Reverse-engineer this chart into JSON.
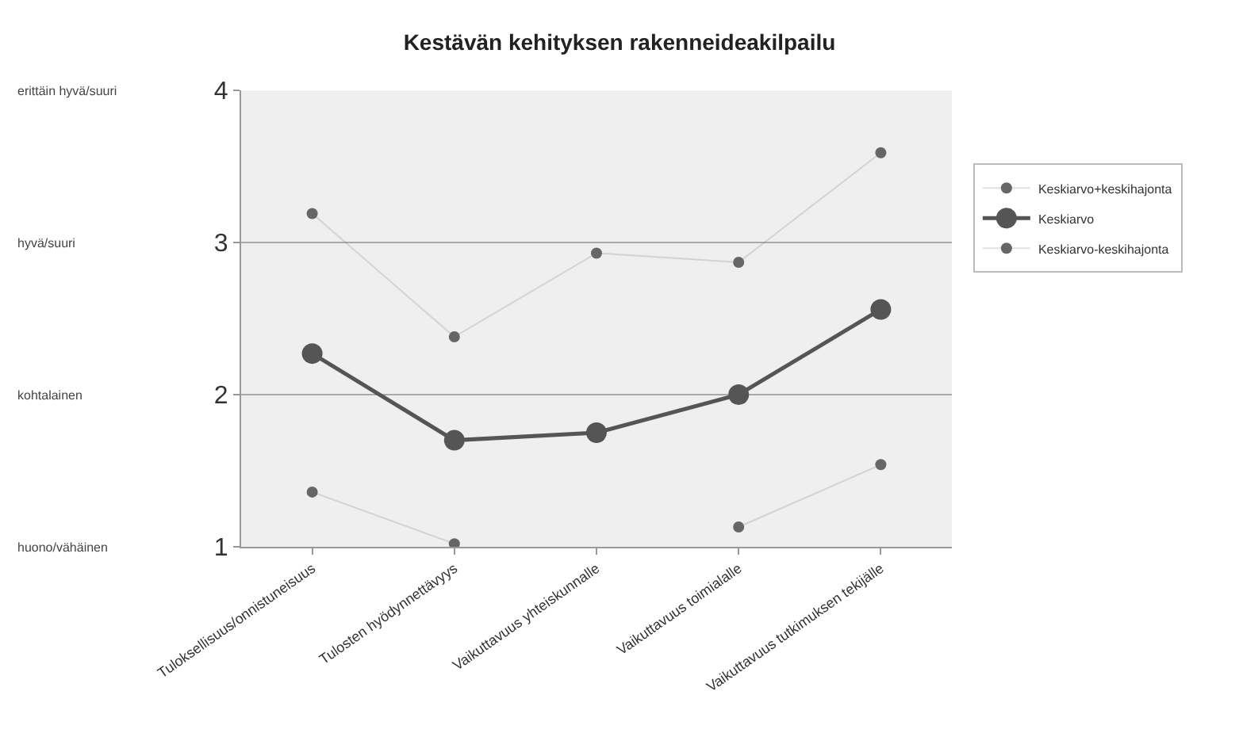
{
  "chart_data": {
    "type": "line",
    "title": "Kestävän kehityksen rakenneideakilpailu",
    "categories": [
      "Tuloksellisuus/onnistuneisuus",
      "Tulosten hyödynnettävyys",
      "Vaikuttavuus yhteiskunnalle",
      "Vaikuttavuus toimialalle",
      "Vaikuttavuus tutkimuksen tekijälle"
    ],
    "series": [
      {
        "name": "Keskiarvo+keskihajonta",
        "color": "#666666",
        "values": [
          3.19,
          2.38,
          2.93,
          2.87,
          3.59
        ]
      },
      {
        "name": "Keskiarvo",
        "color": "#555555",
        "values": [
          2.27,
          1.7,
          1.75,
          2.0,
          2.56
        ]
      },
      {
        "name": "Keskiarvo-keskihajonta",
        "color": "#666666",
        "values": [
          1.36,
          1.02,
          null,
          1.13,
          1.54
        ]
      }
    ],
    "ylim": [
      1,
      4
    ],
    "yticks": [
      1,
      2,
      3,
      4
    ],
    "grid": "y",
    "legend": "right",
    "marker": "circle",
    "annotations": [
      "erittäin hyvä/suuri",
      "hyvä/suuri",
      "kohtalainen",
      "huono/vähäinen"
    ]
  }
}
